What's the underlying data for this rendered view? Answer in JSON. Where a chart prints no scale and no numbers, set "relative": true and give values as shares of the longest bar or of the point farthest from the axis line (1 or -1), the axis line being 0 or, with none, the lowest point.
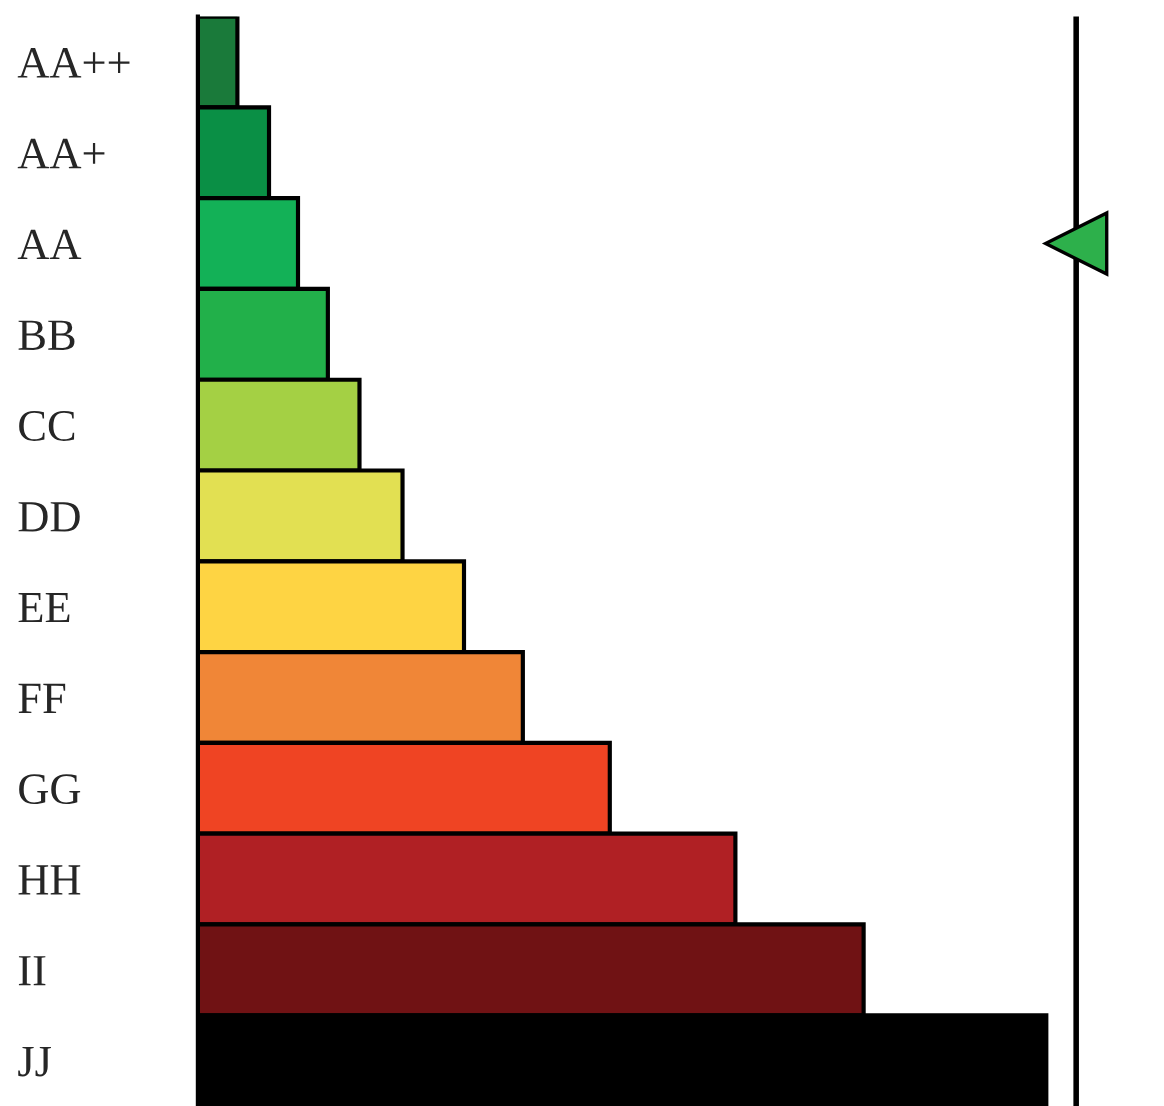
{
  "chart_data": {
    "type": "bar",
    "orientation": "horizontal",
    "relative": true,
    "categories": [
      "AA++",
      "AA+",
      "AA",
      "BB",
      "CC",
      "DD",
      "EE",
      "FF",
      "GG",
      "HH",
      "II",
      "JJ"
    ],
    "series": [
      {
        "colors": [
          "#1a7a3a",
          "#0a8f45",
          "#13b157",
          "#22b04a",
          "#a4d044",
          "#e2e052",
          "#fed443",
          "#f08637",
          "#ef4423",
          "#b02024",
          "#701214",
          "#000000"
        ],
        "values": [
          0.045,
          0.081,
          0.114,
          0.148,
          0.184,
          0.233,
          0.303,
          0.37,
          0.469,
          0.612,
          0.758,
          0.966
        ]
      },
      {
        "type": "scatter",
        "marker": "triangle",
        "color": "#2db04b",
        "values": [
          null,
          null,
          1,
          null,
          null,
          null,
          null,
          null,
          null,
          null,
          null,
          null
        ]
      }
    ],
    "ref_lines": [
      {
        "axis": "x",
        "value": 1,
        "color": "#000000"
      }
    ],
    "grid": false,
    "legend": false
  }
}
